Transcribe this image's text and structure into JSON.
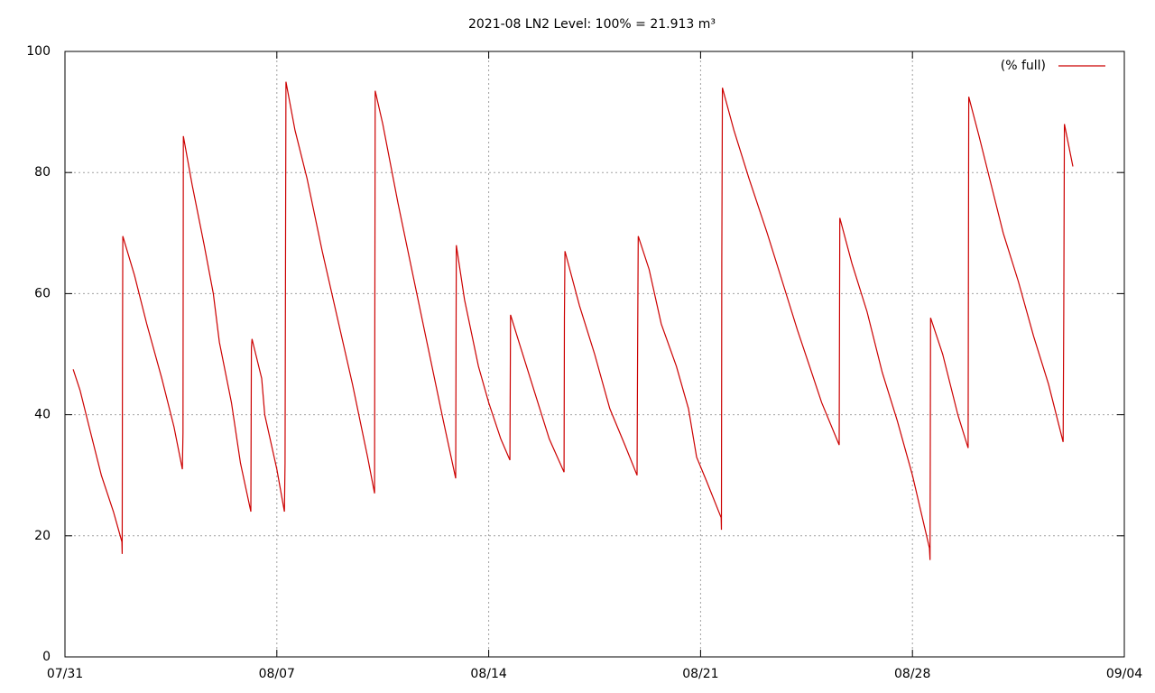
{
  "chart_data": {
    "type": "line",
    "title": "2021-08 LN2 Level: 100% = 21.913 m³",
    "xlim": [
      0,
      35
    ],
    "xticks": [
      {
        "value": 0,
        "label": "07/31"
      },
      {
        "value": 7,
        "label": "08/07"
      },
      {
        "value": 14,
        "label": "08/14"
      },
      {
        "value": 21,
        "label": "08/21"
      },
      {
        "value": 28,
        "label": "08/28"
      },
      {
        "value": 35,
        "label": "09/04"
      }
    ],
    "ylim": [
      0,
      100
    ],
    "yticks": [
      0,
      20,
      40,
      60,
      80,
      100
    ],
    "grid": true,
    "legend": "top-right",
    "series": [
      {
        "name": "(% full)",
        "color": "#cc0000",
        "x": [
          0.27,
          0.5,
          0.8,
          1.2,
          1.6,
          1.88,
          1.89,
          1.9,
          1.91,
          2.3,
          2.7,
          3.2,
          3.6,
          3.88,
          3.9,
          3.91,
          4.2,
          4.6,
          4.9,
          5.1,
          5.5,
          5.8,
          6.14,
          6.16,
          6.18,
          6.5,
          6.6,
          7.0,
          7.25,
          7.27,
          7.3,
          7.6,
          8.0,
          8.5,
          9.0,
          9.5,
          10.0,
          10.23,
          10.25,
          10.5,
          11.0,
          11.5,
          12.0,
          12.5,
          12.91,
          12.93,
          13.2,
          13.66,
          14.0,
          14.4,
          14.7,
          14.72,
          15.0,
          15.5,
          16.0,
          16.49,
          16.5,
          16.52,
          17.0,
          17.5,
          18.0,
          18.5,
          18.9,
          18.92,
          18.94,
          19.3,
          19.7,
          20.2,
          20.6,
          20.87,
          21.2,
          21.68,
          21.69,
          21.7,
          21.72,
          22.1,
          22.6,
          23.2,
          23.7,
          24.2,
          24.6,
          25.0,
          25.58,
          25.6,
          26.0,
          26.5,
          27.0,
          27.5,
          28.0,
          28.56,
          28.58,
          28.6,
          29.0,
          29.5,
          29.84,
          29.86,
          30.2,
          30.6,
          31.0,
          31.5,
          32.0,
          32.5,
          32.98,
          33.0,
          33.02,
          33.3
        ],
        "values": [
          47.5,
          44,
          38,
          30,
          24,
          19,
          17,
          48,
          69.5,
          63,
          55,
          46,
          38,
          31,
          37,
          86,
          78,
          68,
          60,
          52,
          42,
          32,
          24,
          51,
          52.5,
          46,
          40,
          31,
          24,
          32,
          95,
          87,
          79,
          67,
          56,
          45,
          33,
          27,
          93.5,
          88,
          75,
          63,
          51,
          39,
          29.5,
          68,
          59,
          48,
          42,
          36,
          32.5,
          56.5,
          52,
          44,
          36,
          30.5,
          56,
          67,
          58,
          50,
          41,
          35,
          30,
          50,
          69.5,
          64,
          55,
          48,
          41,
          33,
          29,
          23,
          21,
          65,
          94,
          87,
          79,
          70,
          62,
          54,
          48,
          42,
          35,
          72.5,
          65,
          57,
          47,
          39,
          30,
          18,
          16,
          56,
          50,
          40,
          34.5,
          92.5,
          86,
          78,
          70,
          62,
          53,
          45,
          35.5,
          57,
          88,
          81
        ]
      }
    ]
  }
}
